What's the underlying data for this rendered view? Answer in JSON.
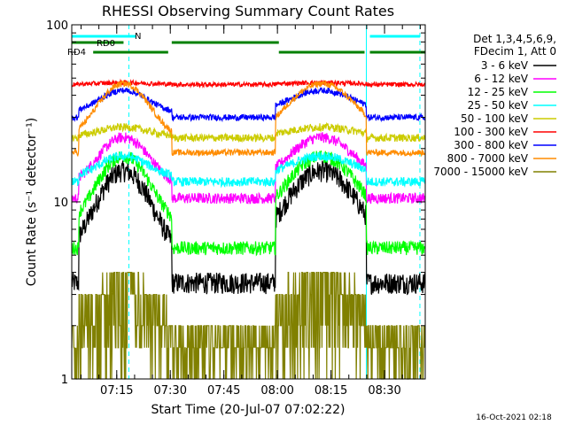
{
  "chart_data": {
    "type": "line",
    "title": "RHESSI Observing Summary Count Rates",
    "xlabel": "Start Time (20-Jul-07 07:02:22)",
    "ylabel": "Count Rate (s⁻¹ detector⁻¹)",
    "y_scale": "log",
    "ylim": [
      1,
      100
    ],
    "y_ticks": [
      "1",
      "10",
      "100"
    ],
    "x_range_minutes": [
      0,
      99
    ],
    "x_ticks": [
      {
        "label": "07:15",
        "minute": 12.6
      },
      {
        "label": "07:30",
        "minute": 27.6
      },
      {
        "label": "07:45",
        "minute": 42.6
      },
      {
        "label": "08:00",
        "minute": 57.6
      },
      {
        "label": "08:15",
        "minute": 72.6
      },
      {
        "label": "08:30",
        "minute": 87.6
      }
    ],
    "legend_header": [
      "Det 1,3,4,5,6,9,",
      "FDecim 1, Att 0"
    ],
    "legend_placement": "right, outside plot",
    "footer_date": "16-Oct-2021 02:18",
    "series": [
      {
        "name": "3 - 6 keV",
        "color": "#000000",
        "night": 3.5,
        "day": 13.5,
        "noise": 0.14
      },
      {
        "name": "6 - 12 keV",
        "color": "#ff00ff",
        "night": 10.5,
        "day": 21.5,
        "noise": 0.07
      },
      {
        "name": "12 - 25 keV",
        "color": "#00ff00",
        "night": 5.5,
        "day": 16.5,
        "noise": 0.09
      },
      {
        "name": "25 - 50 keV",
        "color": "#00ffff",
        "night": 13.0,
        "day": 17.5,
        "noise": 0.06
      },
      {
        "name": "50 - 100 keV",
        "color": "#cccc00",
        "night": 23.0,
        "day": 26.0,
        "noise": 0.05
      },
      {
        "name": "100 - 300 keV",
        "color": "#ff0000",
        "night": 46.0,
        "day": 47.0,
        "noise": 0.03
      },
      {
        "name": "300 - 800 keV",
        "color": "#0000ff",
        "night": 30.0,
        "day": 41.0,
        "noise": 0.04
      },
      {
        "name": "800 - 7000 keV",
        "color": "#ff8c00",
        "night": 19.0,
        "day": 43.0,
        "noise": 0.04
      },
      {
        "name": "7000 - 15000 keV",
        "color": "#808000",
        "night": 1.0,
        "day": 3.0,
        "noise": 0.0
      }
    ],
    "flags": [
      {
        "name": "RD0",
        "color": "#008000"
      },
      {
        "name": "RD4",
        "color": "#008000"
      },
      {
        "name": "N",
        "color": "#00ffff"
      }
    ],
    "flag_segments": {
      "RD0": [
        [
          0,
          14.5
        ],
        [
          28,
          58
        ]
      ],
      "RD4": [
        [
          6,
          27
        ],
        [
          58,
          82
        ],
        [
          83.5,
          99
        ]
      ],
      "N": [
        [
          0,
          18
        ],
        [
          83.5,
          97.5
        ]
      ]
    },
    "night_intervals": [
      [
        0,
        2
      ],
      [
        28,
        57
      ],
      [
        82.5,
        99
      ]
    ],
    "vertical_lines": [
      {
        "minute": 0,
        "style": "solid",
        "color": "#00ffff"
      },
      {
        "minute": 16,
        "style": "dashed",
        "color": "#00ffff"
      },
      {
        "minute": 82.5,
        "style": "solid",
        "color": "#00ffff"
      },
      {
        "minute": 97.5,
        "style": "dashed",
        "color": "#00ffff"
      }
    ],
    "grid": false
  }
}
